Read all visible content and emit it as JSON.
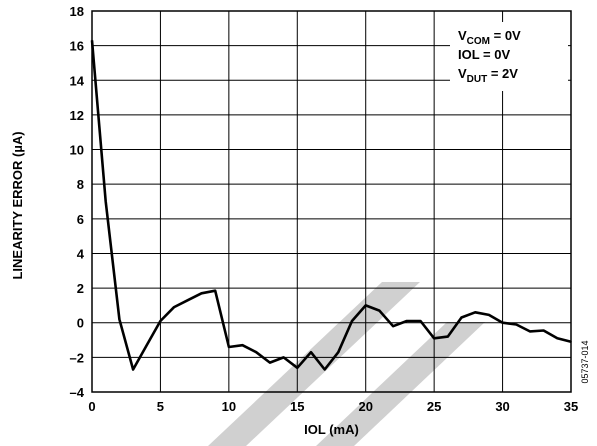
{
  "chart_data": {
    "type": "line",
    "xlabel": "IOL (mA)",
    "ylabel": "LINEARITY ERROR (µA)",
    "xlim": [
      0,
      35
    ],
    "ylim": [
      -4,
      18
    ],
    "xticks": [
      0,
      5,
      10,
      15,
      20,
      25,
      30,
      35
    ],
    "yticks": [
      -4,
      -2,
      0,
      2,
      4,
      6,
      8,
      10,
      12,
      14,
      16,
      18
    ],
    "grid": true,
    "legend_position": "top-right",
    "annotation_lines": [
      {
        "main": "V",
        "sub": "COM",
        "rest": " = 0V"
      },
      {
        "main": "IOL = 0V",
        "sub": "",
        "rest": ""
      },
      {
        "main": "V",
        "sub": "DUT",
        "rest": " = 2V"
      }
    ],
    "figure_id": "05737-014",
    "series": [
      {
        "x": [
          0,
          1,
          2,
          3,
          4,
          5,
          6,
          7,
          8,
          9,
          10,
          11,
          12,
          13,
          14,
          15,
          16,
          17,
          18,
          19,
          20,
          21,
          22,
          23,
          24,
          25,
          26,
          27,
          28,
          29,
          30,
          31,
          32,
          33,
          34,
          35
        ],
        "y": [
          16.3,
          7.0,
          0.2,
          -2.7,
          -1.3,
          0.1,
          0.9,
          1.3,
          1.7,
          1.85,
          -1.4,
          -1.3,
          -1.7,
          -2.3,
          -2.0,
          -2.6,
          -1.7,
          -2.7,
          -1.7,
          0.1,
          1.0,
          0.7,
          -0.2,
          0.1,
          0.1,
          -0.9,
          -0.8,
          0.3,
          0.6,
          0.45,
          0.0,
          -0.1,
          -0.5,
          -0.45,
          -0.9,
          -1.1
        ],
        "color": "#000000"
      }
    ]
  }
}
